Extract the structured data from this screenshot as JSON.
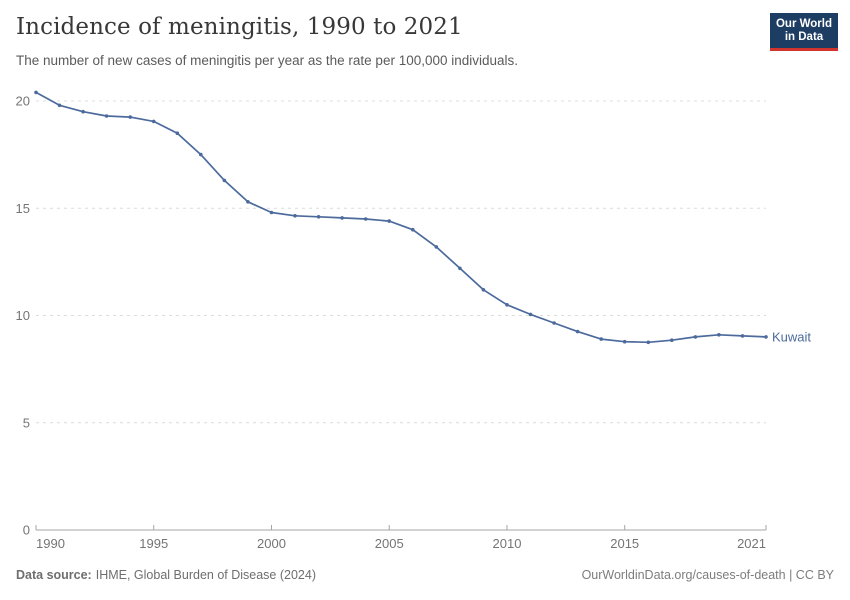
{
  "header": {
    "title": "Incidence of meningitis, 1990 to 2021",
    "subtitle": "The number of new cases of meningitis per year as the rate per 100,000 individuals."
  },
  "logo": {
    "line1": "Our World",
    "line2": "in Data",
    "bg_color": "#1d3d63",
    "accent_color": "#d0342c"
  },
  "chart_data": {
    "type": "line",
    "title": "Incidence of meningitis, 1990 to 2021",
    "x": [
      1990,
      1991,
      1992,
      1993,
      1994,
      1995,
      1996,
      1997,
      1998,
      1999,
      2000,
      2001,
      2002,
      2003,
      2004,
      2005,
      2006,
      2007,
      2008,
      2009,
      2010,
      2011,
      2012,
      2013,
      2014,
      2015,
      2016,
      2017,
      2018,
      2019,
      2020,
      2021
    ],
    "series": [
      {
        "name": "Kuwait",
        "color": "#4C6A9C",
        "values": [
          20.4,
          19.8,
          19.5,
          19.3,
          19.25,
          19.05,
          18.5,
          17.5,
          16.3,
          15.3,
          14.8,
          14.65,
          14.6,
          14.55,
          14.5,
          14.4,
          14.0,
          13.2,
          12.2,
          11.2,
          10.5,
          10.05,
          9.65,
          9.25,
          8.9,
          8.78,
          8.75,
          8.85,
          9.0,
          9.1,
          9.05,
          9.0
        ]
      }
    ],
    "xlim": [
      1990,
      2021
    ],
    "ylim": [
      0,
      20
    ],
    "xticks": [
      1990,
      1995,
      2000,
      2005,
      2010,
      2015,
      2021
    ],
    "yticks": [
      0,
      5,
      10,
      15,
      20
    ],
    "grid": "horizontal-dashed",
    "legend_position": "end-of-line",
    "end_label": "Kuwait"
  },
  "footer": {
    "datasource_label": "Data source:",
    "datasource_value": "IHME, Global Burden of Disease (2024)",
    "link_text": "OurWorldinData.org/causes-of-death | CC BY"
  },
  "colors": {
    "line": "#4C6A9C",
    "axis_text": "#757575",
    "grid_line": "#dcdcdc",
    "axis_line": "#a5a5a5"
  }
}
